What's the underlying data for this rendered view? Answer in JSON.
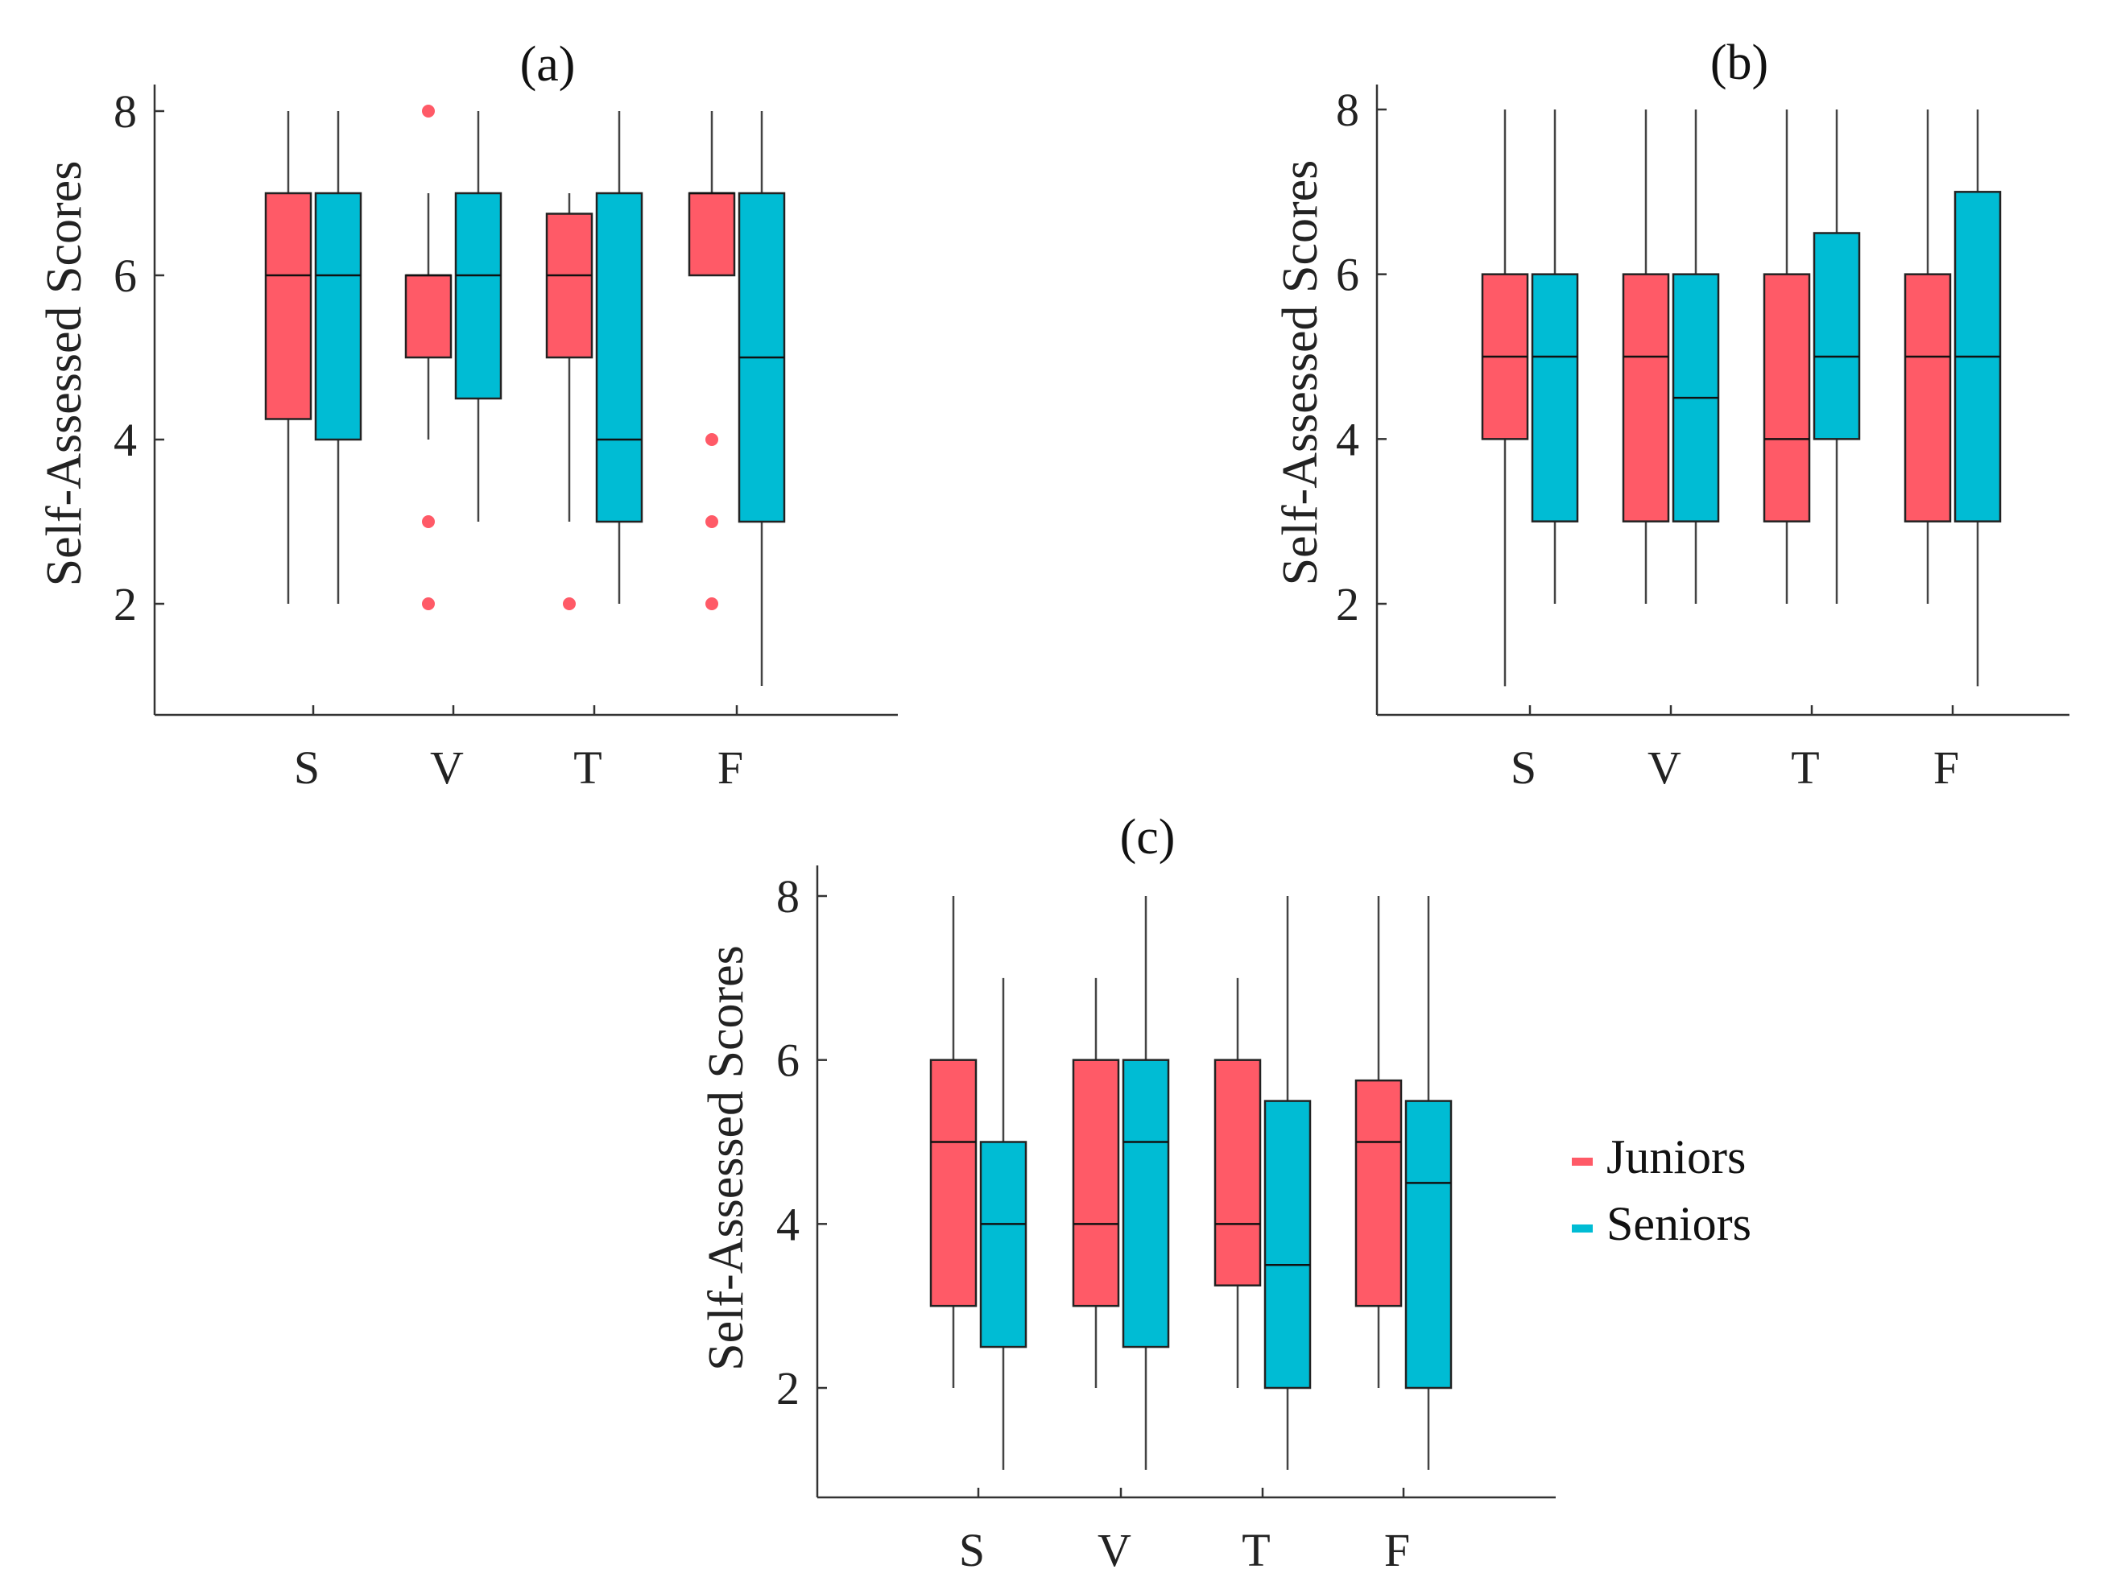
{
  "legend": {
    "entries": [
      {
        "name": "Juniors",
        "color": "#ff5a67"
      },
      {
        "name": "Seniors",
        "color": "#00bcd4"
      }
    ]
  },
  "chart_data": [
    {
      "type": "boxplot",
      "title": "(a)",
      "ylabel": "Self-Assessed Scores",
      "xlabel": "",
      "ylim": [
        0.7,
        8.3
      ],
      "yticks": [
        2,
        4,
        6,
        8
      ],
      "categories": [
        "S",
        "V",
        "T",
        "F"
      ],
      "series": [
        {
          "name": "Juniors",
          "color": "#ff5a67",
          "boxes": [
            {
              "min": 2,
              "q1": 4.25,
              "median": 6,
              "q3": 7,
              "max": 8,
              "outliers": []
            },
            {
              "min": 4,
              "q1": 5,
              "median": 6,
              "q3": 6,
              "max": 7,
              "outliers": [
                8,
                3,
                2
              ]
            },
            {
              "min": 3,
              "q1": 5,
              "median": 6,
              "q3": 6.75,
              "max": 7,
              "outliers": [
                2
              ]
            },
            {
              "min": 6,
              "q1": 6,
              "median": 7,
              "q3": 7,
              "max": 8,
              "outliers": [
                4,
                3,
                2
              ]
            }
          ]
        },
        {
          "name": "Seniors",
          "color": "#00bcd4",
          "boxes": [
            {
              "min": 2,
              "q1": 4,
              "median": 6,
              "q3": 7,
              "max": 8,
              "outliers": []
            },
            {
              "min": 3,
              "q1": 4.5,
              "median": 6,
              "q3": 7,
              "max": 8,
              "outliers": []
            },
            {
              "min": 2,
              "q1": 3,
              "median": 4,
              "q3": 7,
              "max": 8,
              "outliers": []
            },
            {
              "min": 1,
              "q1": 3,
              "median": 5,
              "q3": 7,
              "max": 8,
              "outliers": []
            }
          ]
        }
      ]
    },
    {
      "type": "boxplot",
      "title": "(b)",
      "ylabel": "Self-Assessed Scores",
      "xlabel": "",
      "ylim": [
        0.7,
        8.3
      ],
      "yticks": [
        2,
        4,
        6,
        8
      ],
      "categories": [
        "S",
        "V",
        "T",
        "F"
      ],
      "series": [
        {
          "name": "Juniors",
          "color": "#ff5a67",
          "boxes": [
            {
              "min": 1,
              "q1": 4,
              "median": 5,
              "q3": 6,
              "max": 8,
              "outliers": []
            },
            {
              "min": 2,
              "q1": 3,
              "median": 5,
              "q3": 6,
              "max": 8,
              "outliers": []
            },
            {
              "min": 2,
              "q1": 3,
              "median": 4,
              "q3": 6,
              "max": 8,
              "outliers": []
            },
            {
              "min": 2,
              "q1": 3,
              "median": 5,
              "q3": 6,
              "max": 8,
              "outliers": []
            }
          ]
        },
        {
          "name": "Seniors",
          "color": "#00bcd4",
          "boxes": [
            {
              "min": 2,
              "q1": 3,
              "median": 5,
              "q3": 6,
              "max": 8,
              "outliers": []
            },
            {
              "min": 2,
              "q1": 3,
              "median": 4.5,
              "q3": 6,
              "max": 8,
              "outliers": []
            },
            {
              "min": 2,
              "q1": 4,
              "median": 5,
              "q3": 6.5,
              "max": 8,
              "outliers": []
            },
            {
              "min": 1,
              "q1": 3,
              "median": 5,
              "q3": 7,
              "max": 8,
              "outliers": []
            }
          ]
        }
      ]
    },
    {
      "type": "boxplot",
      "title": "(c)",
      "ylabel": "Self-Assessed Scores",
      "xlabel": "",
      "ylim": [
        0.7,
        8.3
      ],
      "yticks": [
        2,
        4,
        6,
        8
      ],
      "categories": [
        "S",
        "V",
        "T",
        "F"
      ],
      "series": [
        {
          "name": "Juniors",
          "color": "#ff5a67",
          "boxes": [
            {
              "min": 2,
              "q1": 3,
              "median": 5,
              "q3": 6,
              "max": 8,
              "outliers": []
            },
            {
              "min": 2,
              "q1": 3,
              "median": 4,
              "q3": 6,
              "max": 7,
              "outliers": []
            },
            {
              "min": 2,
              "q1": 3.25,
              "median": 4,
              "q3": 6,
              "max": 7,
              "outliers": []
            },
            {
              "min": 2,
              "q1": 3,
              "median": 5,
              "q3": 5.75,
              "max": 8,
              "outliers": []
            }
          ]
        },
        {
          "name": "Seniors",
          "color": "#00bcd4",
          "boxes": [
            {
              "min": 1,
              "q1": 2.5,
              "median": 4,
              "q3": 5,
              "max": 7,
              "outliers": []
            },
            {
              "min": 1,
              "q1": 2.5,
              "median": 5,
              "q3": 6,
              "max": 8,
              "outliers": []
            },
            {
              "min": 1,
              "q1": 2,
              "median": 3.5,
              "q3": 5.5,
              "max": 8,
              "outliers": []
            },
            {
              "min": 1,
              "q1": 2,
              "median": 4.5,
              "q3": 5.5,
              "max": 8,
              "outliers": []
            }
          ]
        }
      ]
    }
  ]
}
